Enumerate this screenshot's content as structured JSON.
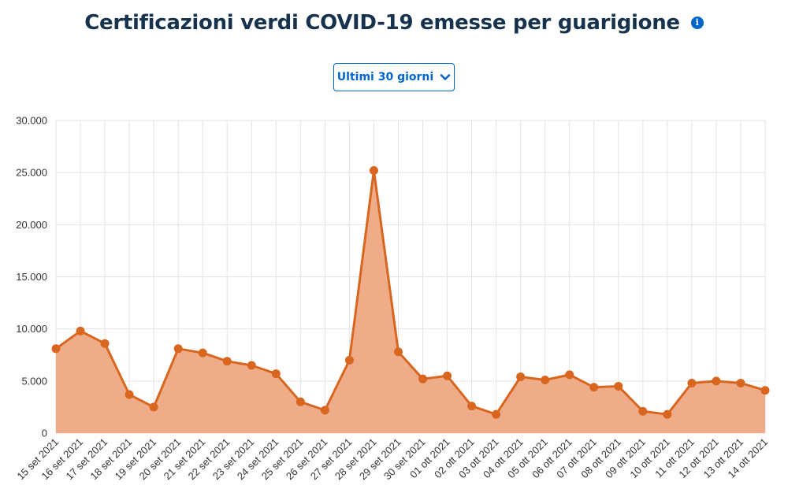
{
  "header": {
    "title": "Certificazioni verdi COVID-19 emesse per guarigione",
    "info_icon": "info-icon"
  },
  "range_select": {
    "selected": "Ultimi 30 giorni",
    "icon": "chevron-down-icon"
  },
  "colors": {
    "line": "#d9661f",
    "area": "#eeac88",
    "title": "#17324d",
    "accent": "#0066cc"
  },
  "chart_data": {
    "type": "area",
    "title": "Certificazioni verdi COVID-19 emesse per guarigione",
    "xlabel": "",
    "ylabel": "",
    "ylim": [
      0,
      30000
    ],
    "yticks": [
      "0",
      "5.000",
      "10.000",
      "15.000",
      "20.000",
      "25.000",
      "30.000"
    ],
    "grid": true,
    "x": [
      "15 set 2021",
      "16 set 2021",
      "17 set 2021",
      "18 set 2021",
      "19 set 2021",
      "20 set 2021",
      "21 set 2021",
      "22 set 2021",
      "23 set 2021",
      "24 set 2021",
      "25 set 2021",
      "26 set 2021",
      "27 set 2021",
      "28 set 2021",
      "29 set 2021",
      "30 set 2021",
      "01 ott 2021",
      "02 ott 2021",
      "03 ott 2021",
      "04 ott 2021",
      "05 ott 2021",
      "06 ott 2021",
      "07 ott 2021",
      "08 ott 2021",
      "09 ott 2021",
      "10 ott 2021",
      "11 ott 2021",
      "12 ott 2021",
      "13 ott 2021",
      "14 ott 2021"
    ],
    "values": [
      8100,
      9800,
      8600,
      3700,
      2500,
      8100,
      7700,
      6900,
      6500,
      5700,
      3000,
      2200,
      7000,
      25200,
      7800,
      5200,
      5500,
      2600,
      1800,
      5400,
      5100,
      5600,
      4400,
      4500,
      2100,
      1800,
      4800,
      5000,
      4800,
      4100
    ]
  }
}
